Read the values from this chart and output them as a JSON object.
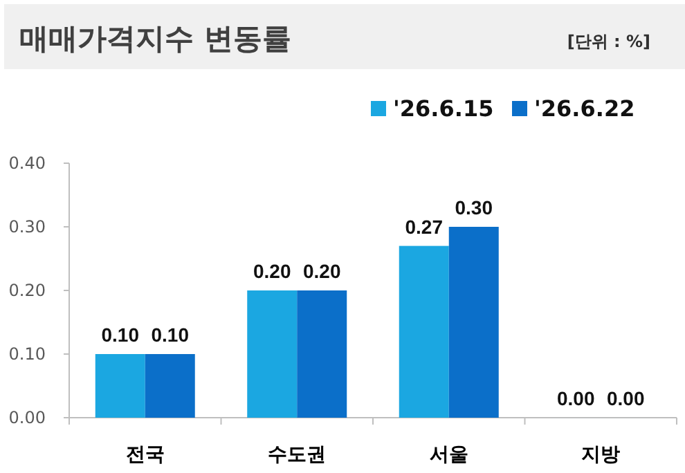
{
  "chart_data": {
    "type": "bar",
    "title": "매매가격지수 변동률",
    "annotations": [
      "[단위 : %]"
    ],
    "categories": [
      "전국",
      "수도권",
      "서울",
      "지방"
    ],
    "series": [
      {
        "name": "'26.6.15",
        "color": "#1ba7e1",
        "values": [
          0.1,
          0.2,
          0.27,
          0.0
        ],
        "value_labels": [
          "0.10",
          "0.20",
          "0.27",
          "0.00"
        ]
      },
      {
        "name": "'26.6.22",
        "color": "#0b6fc9",
        "values": [
          0.1,
          0.2,
          0.3,
          0.0
        ],
        "value_labels": [
          "0.10",
          "0.20",
          "0.30",
          "0.00"
        ]
      }
    ],
    "ylim": [
      0,
      0.4
    ],
    "yticks": [
      {
        "value": 0,
        "label": "0.00"
      },
      {
        "value": 0.1,
        "label": "0.10"
      },
      {
        "value": 0.2,
        "label": "0.20"
      },
      {
        "value": 0.3,
        "label": "0.30"
      },
      {
        "value": 0.4,
        "label": "0.40"
      }
    ],
    "legend": "top right"
  }
}
